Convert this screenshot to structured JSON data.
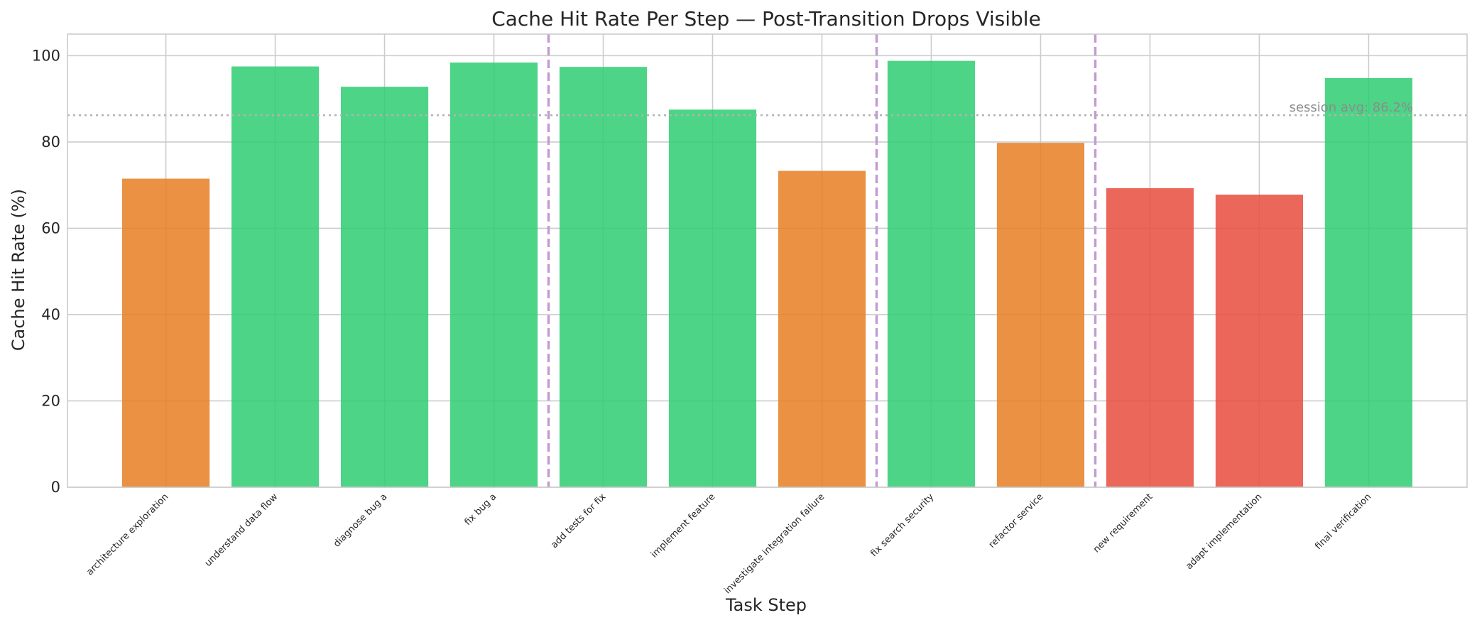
{
  "chart_data": {
    "type": "bar",
    "title": "Cache Hit Rate Per Step — Post-Transition Drops Visible",
    "xlabel": "Task Step",
    "ylabel": "Cache Hit Rate (%)",
    "ylim": [
      0,
      105
    ],
    "yticks": [
      0,
      20,
      40,
      60,
      80,
      100
    ],
    "grid": true,
    "categories": [
      "architecture exploration",
      "understand data flow",
      "diagnose bug a",
      "fix bug a",
      "add tests for fix",
      "implement feature",
      "investigate integration failure",
      "fix search security",
      "refactor service",
      "new requirement",
      "adapt implementation",
      "final verification"
    ],
    "values": [
      71.5,
      97.5,
      92.8,
      98.4,
      97.4,
      87.5,
      73.3,
      98.8,
      79.8,
      69.3,
      67.8,
      94.8
    ],
    "bar_colors": [
      "#e67e22",
      "#2ecc71",
      "#2ecc71",
      "#2ecc71",
      "#2ecc71",
      "#2ecc71",
      "#e67e22",
      "#2ecc71",
      "#e67e22",
      "#e74c3c",
      "#e74c3c",
      "#2ecc71"
    ],
    "transition_lines_after_index": [
      3,
      6,
      8
    ],
    "transition_line_color": "#c39bd3",
    "reference_line": {
      "value": 86.2,
      "label": "session avg: 86.2%",
      "color": "#b3b3b3"
    }
  }
}
